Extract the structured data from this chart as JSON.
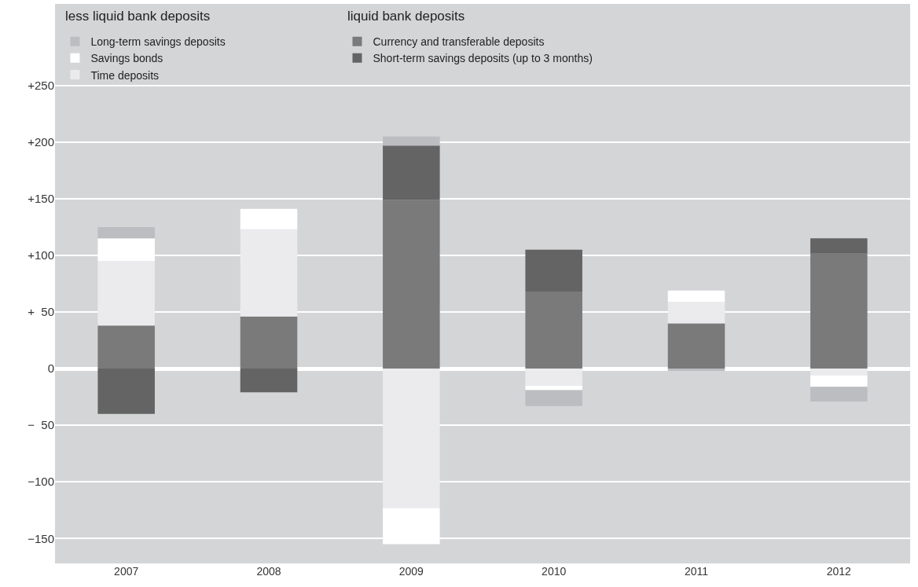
{
  "chart_data": {
    "type": "bar",
    "stacked": true,
    "categories": [
      "2007",
      "2008",
      "2009",
      "2010",
      "2011",
      "2012"
    ],
    "series": [
      {
        "name": "Currency and transferable deposits",
        "color": "#7a7a7a",
        "values": [
          38,
          46,
          149,
          68,
          40,
          102
        ]
      },
      {
        "name": "Short-term savings deposits (up to 3 months)",
        "color": "#646464",
        "values": [
          -40,
          -21,
          48,
          37,
          null,
          13
        ]
      },
      {
        "name": "Time deposits",
        "color": "#ebebed",
        "values": [
          57,
          77,
          -123,
          -15,
          19,
          -6
        ]
      },
      {
        "name": "Savings bonds",
        "color": "#ffffff",
        "values": [
          20,
          18,
          -32,
          -4,
          10,
          -10
        ]
      },
      {
        "name": "Long-term savings deposits",
        "color": "#bcbdc0",
        "values": [
          10,
          null,
          8,
          -14,
          -2,
          -13
        ]
      }
    ],
    "annotations": [
      "less liquid bank deposits",
      "liquid bank deposits"
    ],
    "ylim": [
      -172,
      322
    ],
    "yticks": [
      {
        "value": 250,
        "label": "+250"
      },
      {
        "value": 200,
        "label": "+200"
      },
      {
        "value": 150,
        "label": "+150"
      },
      {
        "value": 100,
        "label": "+100"
      },
      {
        "value": 50,
        "label": "+  50"
      },
      0,
      {
        "value": -50,
        "label": "−  50"
      },
      {
        "value": -100,
        "label": "−100"
      },
      {
        "value": -150,
        "label": "−150"
      }
    ],
    "grid": "y",
    "legend": "top left"
  }
}
